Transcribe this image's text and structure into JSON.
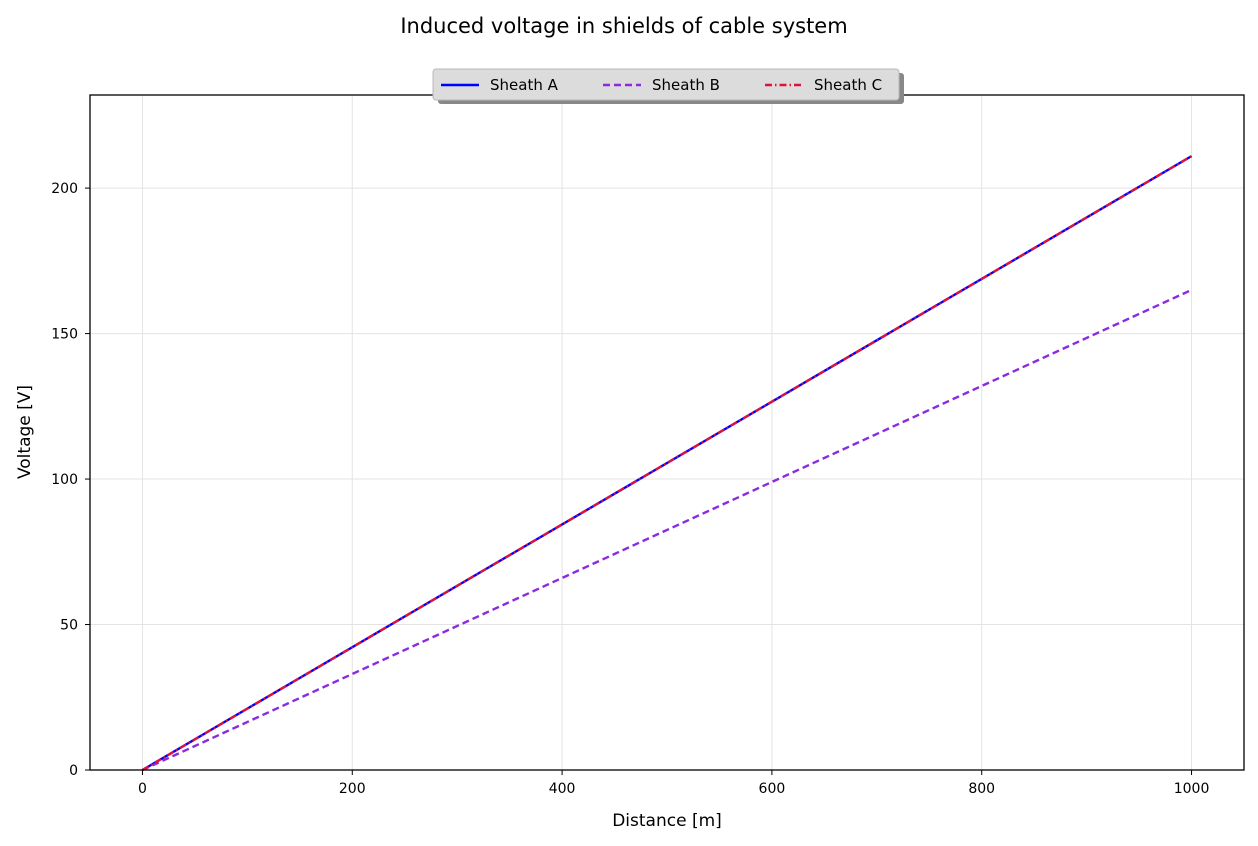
{
  "chart_data": {
    "type": "line",
    "title": "Induced voltage in shields of cable system",
    "xlabel": "Distance [m]",
    "ylabel": "Voltage [V]",
    "xlim": [
      -50,
      1050
    ],
    "ylim": [
      0,
      232
    ],
    "xticks": [
      0,
      200,
      400,
      600,
      800,
      1000
    ],
    "yticks": [
      0,
      50,
      100,
      150,
      200
    ],
    "grid": true,
    "legend_position": "top-center",
    "series": [
      {
        "name": "Sheath A",
        "x": [
          0,
          1000
        ],
        "y": [
          0,
          211
        ],
        "color": "#0000ff",
        "dash": "solid"
      },
      {
        "name": "Sheath B",
        "x": [
          0,
          1000
        ],
        "y": [
          0,
          165
        ],
        "color": "#8a2be2",
        "dash": "dashed"
      },
      {
        "name": "Sheath C",
        "x": [
          0,
          1000
        ],
        "y": [
          0,
          211
        ],
        "color": "#dc143c",
        "dash": "dashdot"
      }
    ]
  }
}
